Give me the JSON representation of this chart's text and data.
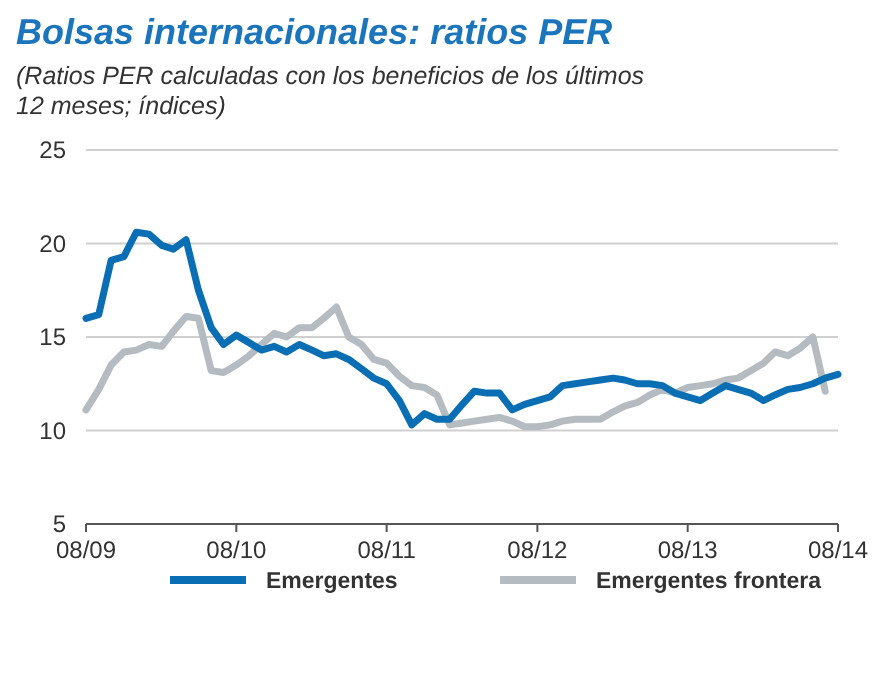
{
  "chart_data": {
    "type": "line",
    "title": "Bolsas internacionales: ratios PER",
    "subtitle": "(Ratios PER calculadas con los beneficios de los últimos 12 meses; índices)",
    "x": [
      "2009-08",
      "2009-09",
      "2009-10",
      "2009-11",
      "2009-12",
      "2010-01",
      "2010-02",
      "2010-03",
      "2010-04",
      "2010-05",
      "2010-06",
      "2010-07",
      "2010-08",
      "2010-09",
      "2010-10",
      "2010-11",
      "2010-12",
      "2011-01",
      "2011-02",
      "2011-03",
      "2011-04",
      "2011-05",
      "2011-06",
      "2011-07",
      "2011-08",
      "2011-09",
      "2011-10",
      "2011-11",
      "2011-12",
      "2012-01",
      "2012-02",
      "2012-03",
      "2012-04",
      "2012-05",
      "2012-06",
      "2012-07",
      "2012-08",
      "2012-09",
      "2012-10",
      "2012-11",
      "2012-12",
      "2013-01",
      "2013-02",
      "2013-03",
      "2013-04",
      "2013-05",
      "2013-06",
      "2013-07",
      "2013-08",
      "2013-09",
      "2013-10",
      "2013-11",
      "2013-12",
      "2014-01",
      "2014-02",
      "2014-03",
      "2014-04",
      "2014-05",
      "2014-06",
      "2014-07",
      "2014-08"
    ],
    "series": [
      {
        "name": "Emergentes",
        "color": "#0a6eb4",
        "values": [
          16.0,
          16.2,
          19.1,
          19.3,
          20.6,
          20.5,
          19.9,
          19.7,
          20.2,
          17.5,
          15.5,
          14.6,
          15.1,
          14.7,
          14.3,
          14.5,
          14.2,
          14.6,
          14.3,
          14.0,
          14.1,
          13.8,
          13.3,
          12.8,
          12.5,
          11.6,
          10.3,
          10.9,
          10.6,
          10.6,
          11.4,
          12.1,
          12.0,
          12.0,
          11.1,
          11.4,
          11.6,
          11.8,
          12.4,
          12.5,
          12.6,
          12.7,
          12.8,
          12.7,
          12.5,
          12.5,
          12.4,
          12.0,
          11.8,
          11.6,
          12.0,
          12.4,
          12.2,
          12.0,
          11.6,
          11.9,
          12.2,
          12.3,
          12.5,
          12.8,
          13.0
        ]
      },
      {
        "name": "Emergentes frontera",
        "color": "#b5bcc1",
        "values": [
          11.1,
          12.2,
          13.5,
          14.2,
          14.3,
          14.6,
          14.5,
          15.3,
          16.1,
          16.0,
          13.2,
          13.1,
          13.5,
          14.0,
          14.6,
          15.2,
          15.0,
          15.5,
          15.5,
          16.0,
          16.6,
          15.0,
          14.6,
          13.8,
          13.6,
          12.9,
          12.4,
          12.3,
          11.9,
          10.3,
          10.4,
          10.5,
          10.6,
          10.7,
          10.5,
          10.2,
          10.2,
          10.3,
          10.5,
          10.6,
          10.6,
          10.6,
          11.0,
          11.3,
          11.5,
          11.9,
          12.2,
          12.0,
          12.3,
          12.4,
          12.5,
          12.7,
          12.8,
          13.2,
          13.6,
          14.2,
          14.0,
          14.4,
          15.0,
          12.1,
          null
        ]
      }
    ],
    "xlim": [
      "2009-08",
      "2014-08"
    ],
    "xticks": [
      {
        "value": "2009-08",
        "label": "08/09"
      },
      {
        "value": "2010-08",
        "label": "08/10"
      },
      {
        "value": "2011-08",
        "label": "08/11"
      },
      {
        "value": "2012-08",
        "label": "08/12"
      },
      {
        "value": "2013-08",
        "label": "08/13"
      },
      {
        "value": "2014-08",
        "label": "08/14"
      }
    ],
    "ylim": [
      5,
      25
    ],
    "yticks": [
      5,
      10,
      15,
      20,
      25
    ],
    "grid": "y",
    "legend": "bottom",
    "line_style": "solid",
    "marker": "none"
  }
}
